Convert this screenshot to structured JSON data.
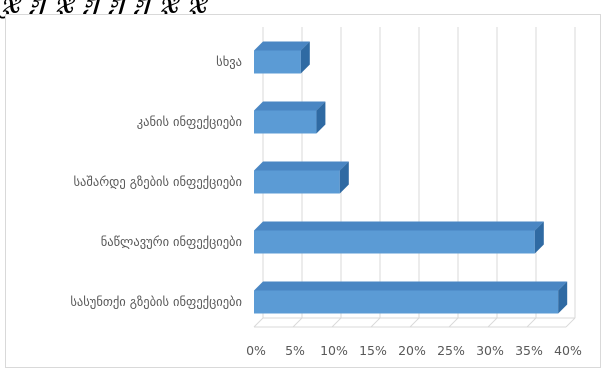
{
  "page": {
    "title": "ჯ ჟ ჯ ჟ ჟ ჟ ჯ ჯ"
  },
  "chart_data": {
    "type": "bar",
    "orientation": "horizontal",
    "style": "3d-clustered",
    "categories": [
      "სხვა",
      "კანის ინფექციები",
      "საშარდე გზების ინფექციები",
      "ნაწლავური ინფექციები",
      "სასუნთქი გზების ინფექციები"
    ],
    "values": [
      0.06,
      0.08,
      0.11,
      0.36,
      0.39
    ],
    "xlim": [
      0,
      0.4
    ],
    "xticks": [
      "0%",
      "5%",
      "10%",
      "15%",
      "20%",
      "25%",
      "30%",
      "35%",
      "40%"
    ],
    "title": "",
    "xlabel": "",
    "ylabel": "",
    "grid": true,
    "legend": "none",
    "colors": {
      "bar_front": "#5b9bd5",
      "bar_top": "#4a86c3",
      "bar_side": "#2f6aa3",
      "grid": "#d9d9d9",
      "floor": "#d9d9d9"
    }
  }
}
